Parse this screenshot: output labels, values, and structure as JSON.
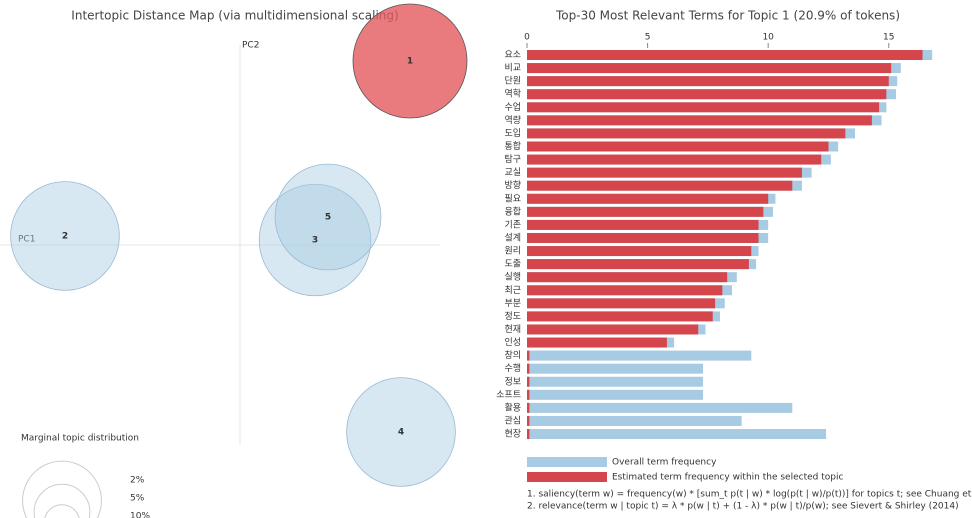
{
  "chart_data": [
    {
      "type": "bubble",
      "title": "Intertopic Distance Map (via multidimensional scaling)",
      "xlabel": "PC1",
      "ylabel": "PC2",
      "labels": [
        "1",
        "2",
        "3",
        "4",
        "5"
      ],
      "x": [
        1.7,
        -1.75,
        0.75,
        1.61,
        0.88
      ],
      "values": [
        1.84,
        0.09,
        0.05,
        -1.87,
        0.28
      ],
      "sizes": [
        20.9,
        19,
        20,
        19,
        18
      ],
      "colors": [
        "#e35a5e",
        "#a6cbe3",
        "#a6cbe3",
        "#a6cbe3",
        "#a6cbe3"
      ],
      "xlim": [
        -2.4,
        2.0
      ],
      "ylim": [
        -2.75,
        2.15
      ],
      "size_legend": {
        "title": "Marginal topic distribution",
        "ticks": [
          {
            "value": 2,
            "label": "2%"
          },
          {
            "value": 5,
            "label": "5%"
          },
          {
            "value": 10,
            "label": "10%"
          }
        ]
      }
    },
    {
      "type": "hbar",
      "title": "Top-30 Most Relevant Terms for Topic 1 (20.9% of tokens)",
      "categories": [
        "요소",
        "비교",
        "단원",
        "역학",
        "수업",
        "역량",
        "도입",
        "통합",
        "탐구",
        "교실",
        "방향",
        "필요",
        "융합",
        "기존",
        "설계",
        "원리",
        "도출",
        "실행",
        "최근",
        "부분",
        "정도",
        "현재",
        "인성",
        "창의",
        "수행",
        "정보",
        "소프트",
        "활용",
        "관심",
        "현장"
      ],
      "series": [
        {
          "name": "Overall term frequency",
          "color": "#a6cbe3",
          "values": [
            16.8,
            15.5,
            15.35,
            15.3,
            14.9,
            14.7,
            13.6,
            12.9,
            12.6,
            11.8,
            11.4,
            10.3,
            10.2,
            10.0,
            10.0,
            9.6,
            9.5,
            8.7,
            8.5,
            8.2,
            8.0,
            7.4,
            6.1,
            9.3,
            7.3,
            7.3,
            7.3,
            11.0,
            8.9,
            12.4
          ]
        },
        {
          "name": "Estimated term frequency within the selected topic",
          "color": "#d4464b",
          "values": [
            16.4,
            15.1,
            15.0,
            14.9,
            14.6,
            14.3,
            13.2,
            12.5,
            12.2,
            11.4,
            11.0,
            10.0,
            9.8,
            9.6,
            9.6,
            9.3,
            9.2,
            8.3,
            8.1,
            7.8,
            7.7,
            7.1,
            5.8,
            0.1,
            0.1,
            0.1,
            0.1,
            0.1,
            0.1,
            0.1
          ]
        }
      ],
      "xlim": [
        0,
        17
      ],
      "xticks": [
        0,
        5,
        10,
        15
      ],
      "notes": [
        "1. saliency(term w) = frequency(w) * [sum_t p(t | w) * log(p(t | w)/p(t))] for topics t; see Chuang et. al (2012)",
        "2. relevance(term w | topic t) = λ * p(w | t) + (1 - λ) * p(w | t)/p(w); see Sievert & Shirley (2014)"
      ]
    }
  ]
}
